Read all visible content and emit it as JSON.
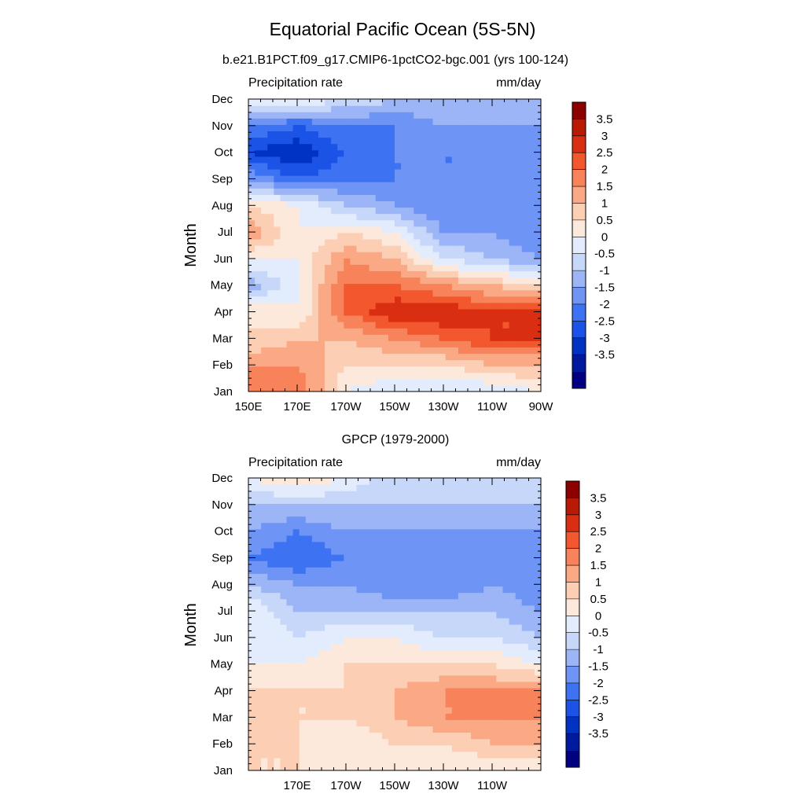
{
  "figure": {
    "title": "Equatorial Pacific Ocean (5S-5N)"
  },
  "colorbar": {
    "levels": [
      -3.5,
      -3,
      -2.5,
      -2,
      -1.5,
      -1,
      -0.5,
      0,
      0.5,
      1,
      1.5,
      2,
      2.5,
      3,
      3.5
    ],
    "labels": [
      "3.5",
      "3",
      "2.5",
      "2",
      "1.5",
      "1",
      "0.5",
      "0",
      "-0.5",
      "-1",
      "-1.5",
      "-2",
      "-2.5",
      "-3",
      "-3.5"
    ],
    "colors": [
      "#000080",
      "#001a9e",
      "#0033c4",
      "#1a53e6",
      "#3d73f2",
      "#6e94f5",
      "#9cb5f7",
      "#c7d7fa",
      "#e3ecfd",
      "#fde9db",
      "#fccfb5",
      "#fba884",
      "#f8825a",
      "#f2572e",
      "#d92e12",
      "#b81a05",
      "#8c0000"
    ]
  },
  "chart_data": [
    {
      "type": "heatmap",
      "title": "b.e21.B1PCT.f09_g17.CMIP6-1pctCO2-bgc.001 (yrs 100-124)",
      "left_label": "Precipitation rate",
      "right_label": "mm/day",
      "ylabel": "Month",
      "xlabel": "",
      "x_ticks": [
        "150E",
        "170E",
        "170W",
        "150W",
        "130W",
        "110W",
        "90W"
      ],
      "y_ticks": [
        "Jan",
        "Feb",
        "Mar",
        "Apr",
        "May",
        "Jun",
        "Jul",
        "Aug",
        "Sep",
        "Oct",
        "Nov",
        "Dec"
      ],
      "x": [
        150,
        170,
        190,
        210,
        230,
        250,
        270
      ],
      "y": [
        "Jan",
        "Feb",
        "Mar",
        "Apr",
        "May",
        "Jun",
        "Jul",
        "Aug",
        "Sep",
        "Oct",
        "Nov",
        "Dec"
      ],
      "z": [
        [
          2.5,
          2.5,
          0.5,
          0.0,
          0.0,
          0.0,
          0.5
        ],
        [
          2.0,
          2.0,
          1.0,
          1.0,
          1.0,
          1.5,
          1.5
        ],
        [
          1.0,
          1.5,
          1.5,
          2.0,
          2.5,
          3.0,
          3.0
        ],
        [
          1.0,
          0.5,
          2.5,
          3.5,
          3.5,
          3.0,
          3.0
        ],
        [
          -1.0,
          0.5,
          2.5,
          2.5,
          2.0,
          1.5,
          1.0
        ],
        [
          0.5,
          0.5,
          2.0,
          1.5,
          0.0,
          -0.5,
          -1.0
        ],
        [
          2.0,
          0.5,
          1.0,
          0.5,
          -1.0,
          -1.0,
          -1.5
        ],
        [
          1.0,
          0.5,
          -0.5,
          -1.0,
          -1.5,
          -1.5,
          -1.5
        ],
        [
          -1.0,
          -2.0,
          -1.5,
          -1.5,
          -1.5,
          -1.5,
          -1.5
        ],
        [
          -2.5,
          -3.0,
          -2.0,
          -1.5,
          -1.5,
          -1.5,
          -1.5
        ],
        [
          -1.5,
          -2.0,
          -1.5,
          -1.5,
          -1.0,
          -1.0,
          -1.0
        ],
        [
          0.5,
          0.5,
          0.0,
          -0.5,
          -0.5,
          -0.5,
          -0.5
        ]
      ]
    },
    {
      "type": "heatmap",
      "title": "GPCP (1979-2000)",
      "left_label": "Precipitation rate",
      "right_label": "mm/day",
      "ylabel": "Month",
      "xlabel": "",
      "x_ticks": [
        "170E",
        "170W",
        "150W",
        "130W",
        "110W"
      ],
      "y_ticks": [
        "Jan",
        "Feb",
        "Mar",
        "Apr",
        "May",
        "Jun",
        "Jul",
        "Aug",
        "Sep",
        "Oct",
        "Nov",
        "Dec"
      ],
      "x": [
        150,
        170,
        190,
        210,
        230,
        250,
        270
      ],
      "y": [
        "Jan",
        "Feb",
        "Mar",
        "Apr",
        "May",
        "Jun",
        "Jul",
        "Aug",
        "Sep",
        "Oct",
        "Nov",
        "Dec"
      ],
      "z": [
        [
          1.0,
          1.0,
          0.5,
          0.5,
          0.5,
          0.5,
          0.5
        ],
        [
          1.0,
          1.0,
          0.5,
          1.0,
          1.0,
          1.5,
          1.5
        ],
        [
          1.0,
          1.0,
          1.0,
          1.5,
          2.0,
          2.0,
          2.0
        ],
        [
          1.0,
          1.0,
          1.0,
          1.5,
          2.0,
          2.0,
          2.0
        ],
        [
          0.5,
          0.5,
          1.0,
          1.0,
          1.0,
          1.0,
          0.5
        ],
        [
          0.5,
          0.0,
          0.5,
          0.5,
          0.0,
          0.0,
          -0.5
        ],
        [
          0.5,
          -0.5,
          -0.5,
          -0.5,
          -0.5,
          -0.5,
          -1.0
        ],
        [
          -0.5,
          -1.0,
          -1.0,
          -1.5,
          -1.5,
          -1.0,
          -1.5
        ],
        [
          -1.5,
          -2.0,
          -1.5,
          -1.5,
          -1.5,
          -1.0,
          -1.5
        ],
        [
          -1.0,
          -1.5,
          -1.0,
          -1.0,
          -1.0,
          -1.0,
          -1.0
        ],
        [
          -0.5,
          -0.5,
          -0.5,
          -0.5,
          -0.5,
          -0.5,
          -0.5
        ],
        [
          0.5,
          1.0,
          0.5,
          -0.5,
          -0.5,
          -0.5,
          -0.5
        ]
      ]
    }
  ]
}
